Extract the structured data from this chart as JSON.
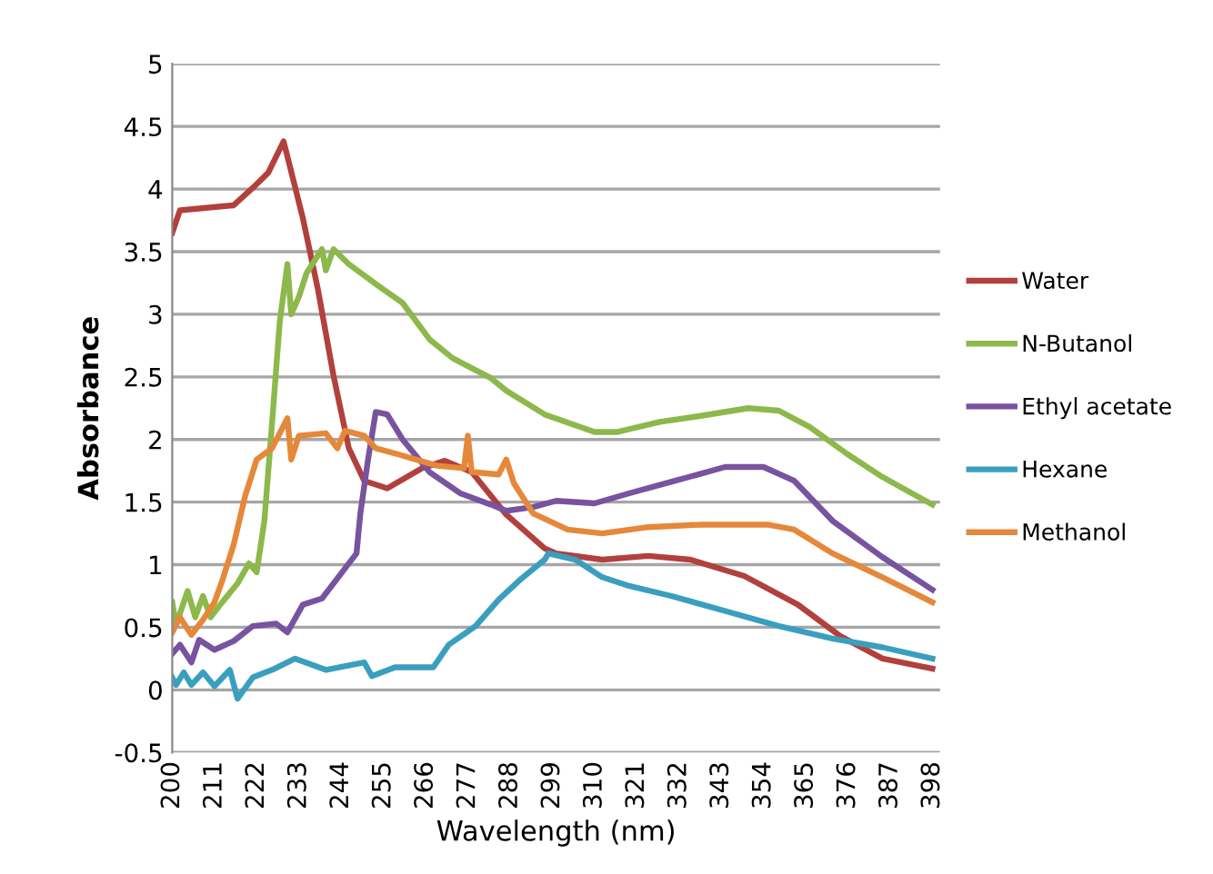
{
  "chart_data": {
    "type": "line",
    "xlabel": "Wavelength (nm)",
    "ylabel": "Absorbance",
    "xlim": [
      200,
      400
    ],
    "ylim": [
      -0.5,
      5
    ],
    "xticks": [
      200,
      211,
      222,
      233,
      244,
      255,
      266,
      277,
      288,
      299,
      310,
      321,
      332,
      343,
      354,
      365,
      376,
      387,
      398
    ],
    "yticks": [
      -0.5,
      0,
      0.5,
      1,
      1.5,
      2,
      2.5,
      3,
      3.5,
      4,
      4.5,
      5
    ],
    "grid": "y",
    "legend": "right",
    "marker": "none",
    "line_style": "solid",
    "series": [
      {
        "name": "Water",
        "color": "#b2403d",
        "x": [
          200,
          202,
          216,
          221,
          225,
          229,
          230,
          234,
          238,
          242,
          246,
          250,
          256,
          265,
          271,
          278,
          287,
          297,
          300,
          312,
          324,
          335,
          349,
          363,
          374,
          385,
          398
        ],
        "values": [
          3.65,
          3.83,
          3.87,
          4.01,
          4.13,
          4.38,
          4.26,
          3.77,
          3.19,
          2.51,
          1.93,
          1.67,
          1.61,
          1.77,
          1.83,
          1.74,
          1.4,
          1.13,
          1.09,
          1.04,
          1.07,
          1.04,
          0.91,
          0.68,
          0.43,
          0.25,
          0.17
        ]
      },
      {
        "name": "N-Butanol",
        "color": "#8db84b",
        "x": [
          200,
          201,
          204,
          206,
          208,
          210,
          213,
          217,
          220,
          222,
          224,
          226,
          228,
          230,
          231,
          233,
          235,
          239,
          240,
          242,
          246,
          254,
          260,
          267,
          273,
          283,
          287,
          297,
          310,
          316,
          327,
          338,
          350,
          358,
          366,
          376,
          385,
          398
        ],
        "values": [
          0.7,
          0.52,
          0.79,
          0.58,
          0.75,
          0.58,
          0.7,
          0.85,
          1.01,
          0.94,
          1.35,
          2.13,
          2.94,
          3.4,
          3.0,
          3.14,
          3.33,
          3.52,
          3.35,
          3.52,
          3.4,
          3.22,
          3.09,
          2.8,
          2.65,
          2.49,
          2.39,
          2.2,
          2.06,
          2.06,
          2.14,
          2.19,
          2.25,
          2.23,
          2.1,
          1.88,
          1.7,
          1.48
        ]
      },
      {
        "name": "Ethyl acetate",
        "color": "#7753a0",
        "x": [
          200,
          202,
          205,
          207,
          211,
          216,
          221,
          227,
          230,
          234,
          239,
          242,
          245,
          248,
          249,
          251,
          253,
          256,
          260,
          267,
          275,
          283,
          287,
          294,
          300,
          310,
          319,
          331,
          344,
          354,
          362,
          372,
          385,
          398
        ],
        "values": [
          0.29,
          0.36,
          0.22,
          0.4,
          0.32,
          0.39,
          0.51,
          0.53,
          0.46,
          0.68,
          0.73,
          0.85,
          0.97,
          1.09,
          1.41,
          1.84,
          2.22,
          2.2,
          2.0,
          1.74,
          1.57,
          1.48,
          1.43,
          1.46,
          1.51,
          1.49,
          1.57,
          1.67,
          1.78,
          1.78,
          1.67,
          1.35,
          1.06,
          0.8
        ]
      },
      {
        "name": "Hexane",
        "color": "#3a9fbe",
        "x": [
          200,
          201,
          203,
          205,
          208,
          211,
          215,
          217,
          221,
          226,
          232,
          240,
          250,
          252,
          258,
          268,
          272,
          279,
          285,
          291,
          297,
          298,
          305,
          312,
          319,
          330,
          344,
          358,
          372,
          385,
          398
        ],
        "values": [
          0.1,
          0.04,
          0.14,
          0.04,
          0.14,
          0.03,
          0.16,
          -0.07,
          0.1,
          0.16,
          0.25,
          0.16,
          0.22,
          0.11,
          0.18,
          0.18,
          0.36,
          0.51,
          0.72,
          0.89,
          1.04,
          1.09,
          1.04,
          0.9,
          0.83,
          0.75,
          0.63,
          0.51,
          0.41,
          0.34,
          0.25
        ]
      },
      {
        "name": "Methanol",
        "color": "#e5883a",
        "x": [
          200,
          202,
          205,
          208,
          211,
          213,
          216,
          219,
          222,
          226,
          230,
          231,
          233,
          240,
          243,
          245,
          250,
          253,
          259,
          269,
          276,
          277,
          278,
          285,
          287,
          289,
          294,
          303,
          312,
          324,
          338,
          355,
          362,
          372,
          385,
          398
        ],
        "values": [
          0.46,
          0.58,
          0.44,
          0.56,
          0.7,
          0.87,
          1.16,
          1.55,
          1.84,
          1.93,
          2.17,
          1.84,
          2.03,
          2.05,
          1.93,
          2.07,
          2.03,
          1.93,
          1.88,
          1.79,
          1.77,
          2.03,
          1.74,
          1.72,
          1.84,
          1.65,
          1.41,
          1.28,
          1.25,
          1.3,
          1.32,
          1.32,
          1.28,
          1.09,
          0.9,
          0.7
        ]
      }
    ]
  }
}
